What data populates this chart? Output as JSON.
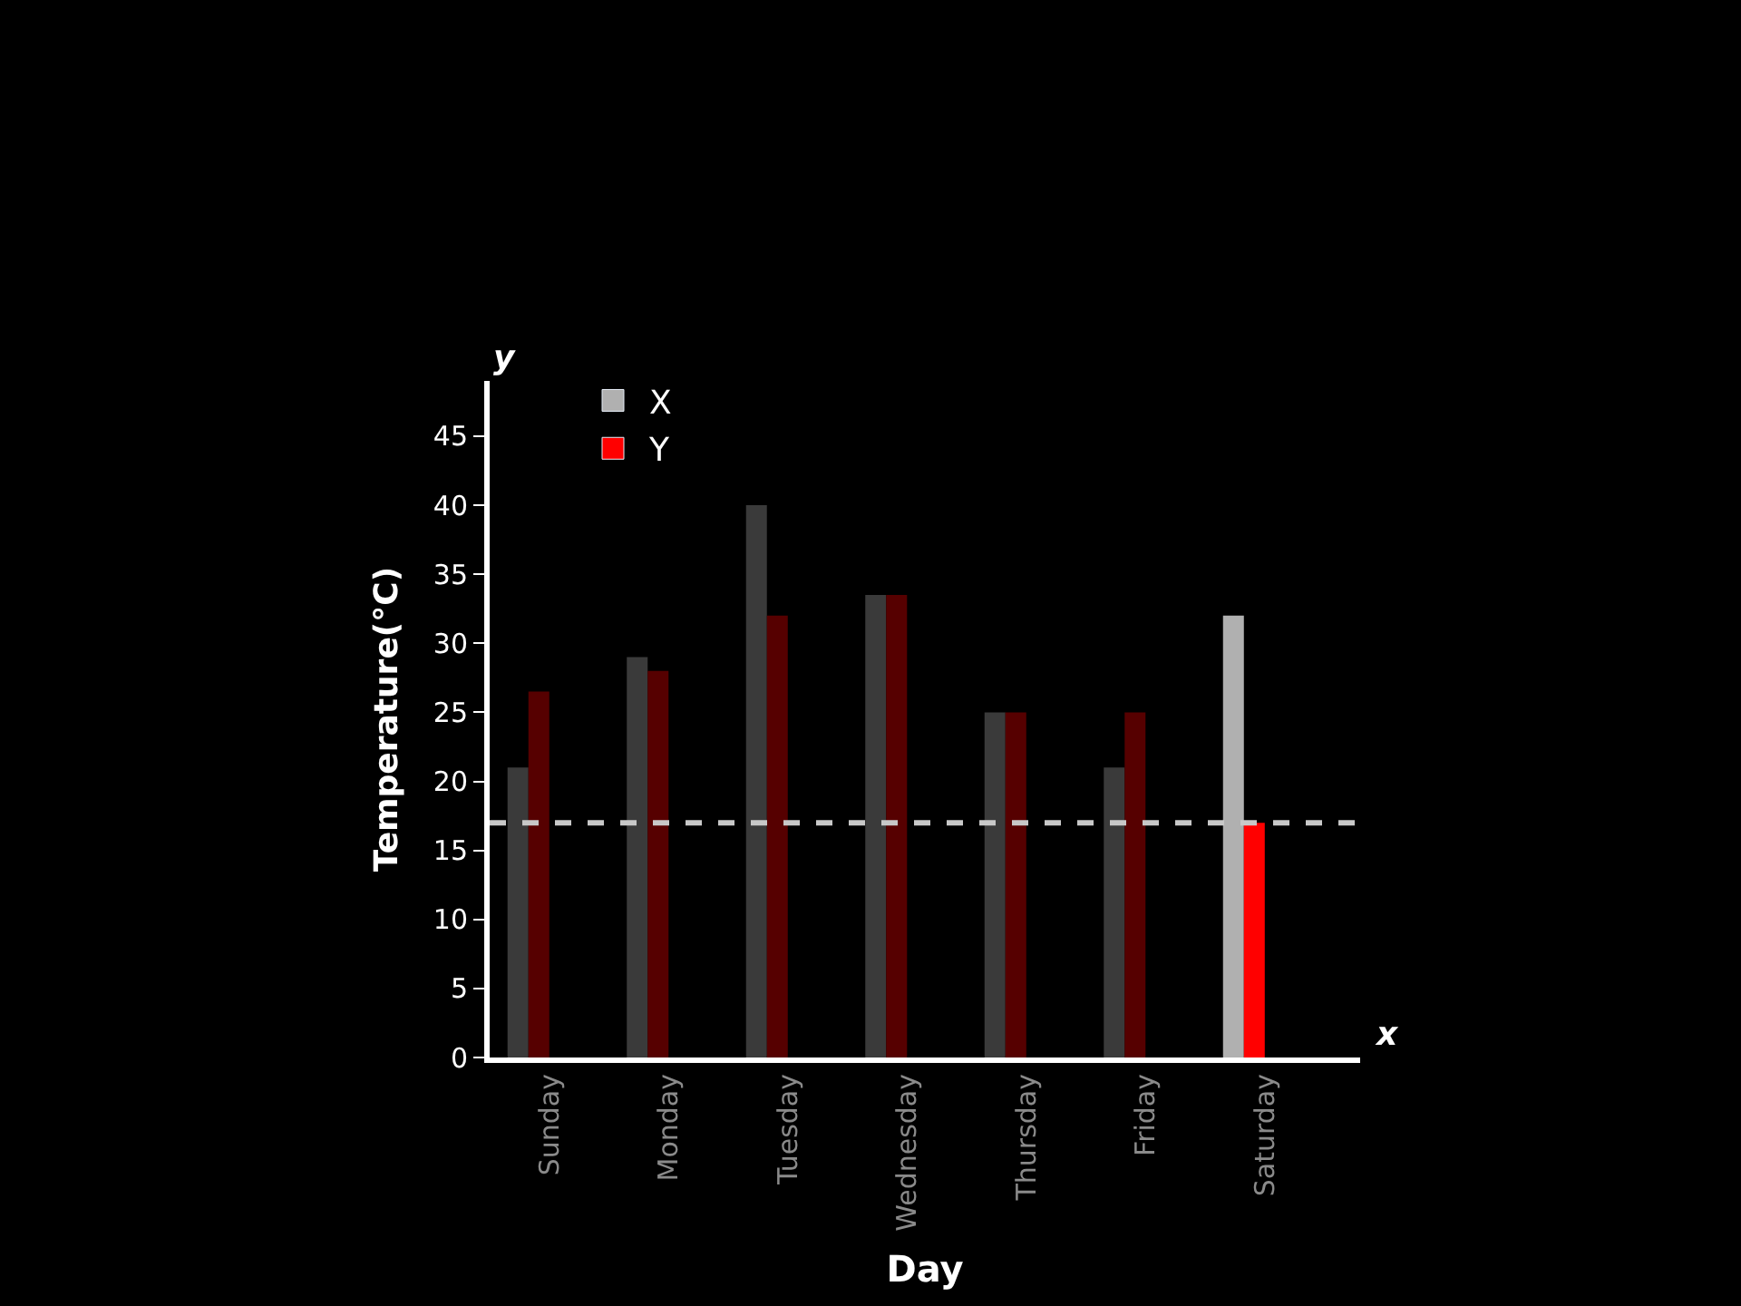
{
  "chart_data": {
    "type": "bar",
    "xlabel": "Day",
    "ylabel": "Temperature(°C)",
    "categories": [
      "Sunday",
      "Monday",
      "Tuesday",
      "Wednesday",
      "Thursday",
      "Friday",
      "Saturday"
    ],
    "series": [
      {
        "name": "X",
        "color": "#b0b0b0",
        "colors": [
          "#3a3a3a",
          "#3a3a3a",
          "#3a3a3a",
          "#3a3a3a",
          "#3a3a3a",
          "#3a3a3a",
          "#b0b0b0"
        ],
        "values": [
          21,
          29,
          40,
          33.5,
          25,
          21,
          32
        ]
      },
      {
        "name": "Y",
        "color": "#ff0000",
        "colors": [
          "#560000",
          "#560000",
          "#560000",
          "#560000",
          "#560000",
          "#560000",
          "#ff0000"
        ],
        "values": [
          26.5,
          28,
          32,
          33.5,
          25,
          25,
          17
        ]
      }
    ],
    "ylim": [
      0,
      49
    ],
    "yticks": [
      0,
      5,
      10,
      15,
      20,
      25,
      30,
      35,
      40,
      45
    ],
    "ref_lines": [
      {
        "axis": "y",
        "value": 17,
        "color": "#c8c8c8",
        "line_style": "dashed"
      }
    ],
    "annotations": [
      "y",
      "x"
    ],
    "grid": false,
    "legend": "top left"
  }
}
